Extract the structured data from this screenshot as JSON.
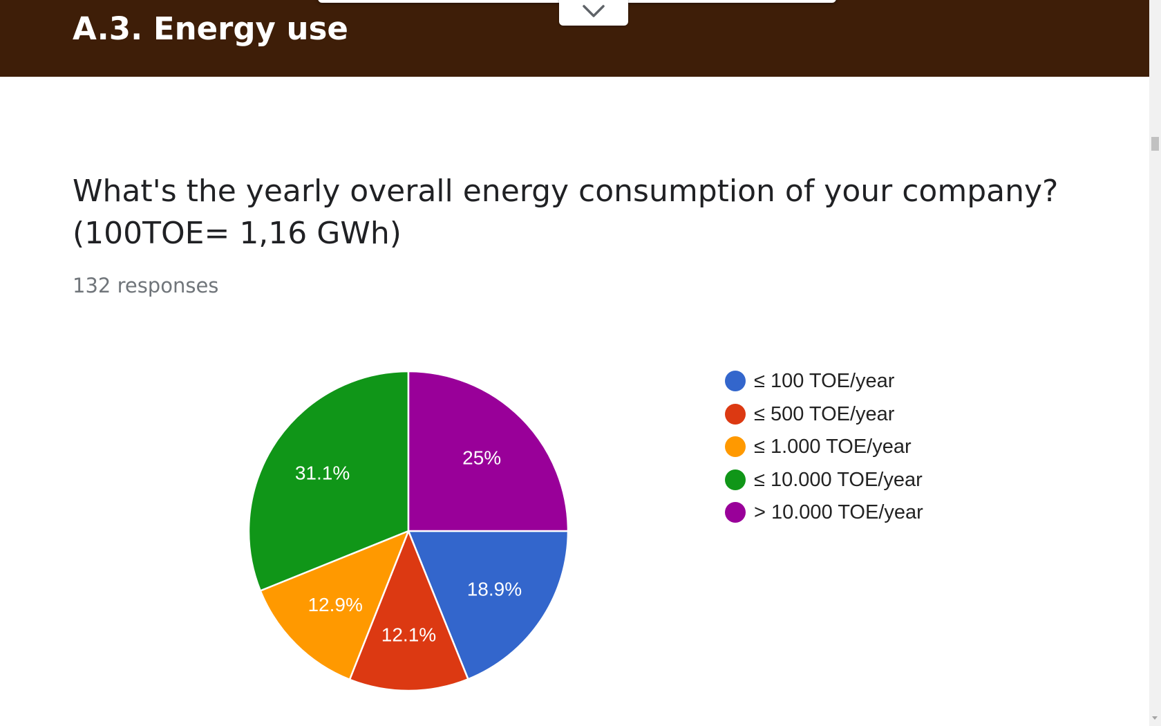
{
  "header": {
    "title": "A.3. Energy use"
  },
  "question": {
    "text": "What's the yearly overall energy consumption of your company? (100TOE= 1,16 GWh)",
    "responses": "132 responses"
  },
  "chart_data": {
    "type": "pie",
    "title": "",
    "legend_position": "right",
    "slices": [
      {
        "label": "≤ 100 TOE/year",
        "value": 18.9,
        "display": "18.9%",
        "color": "#3366cc"
      },
      {
        "label": "≤ 500 TOE/year",
        "value": 12.1,
        "display": "12.1%",
        "color": "#dc3912"
      },
      {
        "label": "≤ 1.000 TOE/year",
        "value": 12.9,
        "display": "12.9%",
        "color": "#ff9900"
      },
      {
        "label": "≤ 10.000 TOE/year",
        "value": 31.1,
        "display": "31.1%",
        "color": "#109618"
      },
      {
        "label": "> 10.000 TOE/year",
        "value": 25,
        "display": "25%",
        "color": "#990099"
      }
    ]
  },
  "icons": {
    "collapse": "chevron-down-icon"
  }
}
